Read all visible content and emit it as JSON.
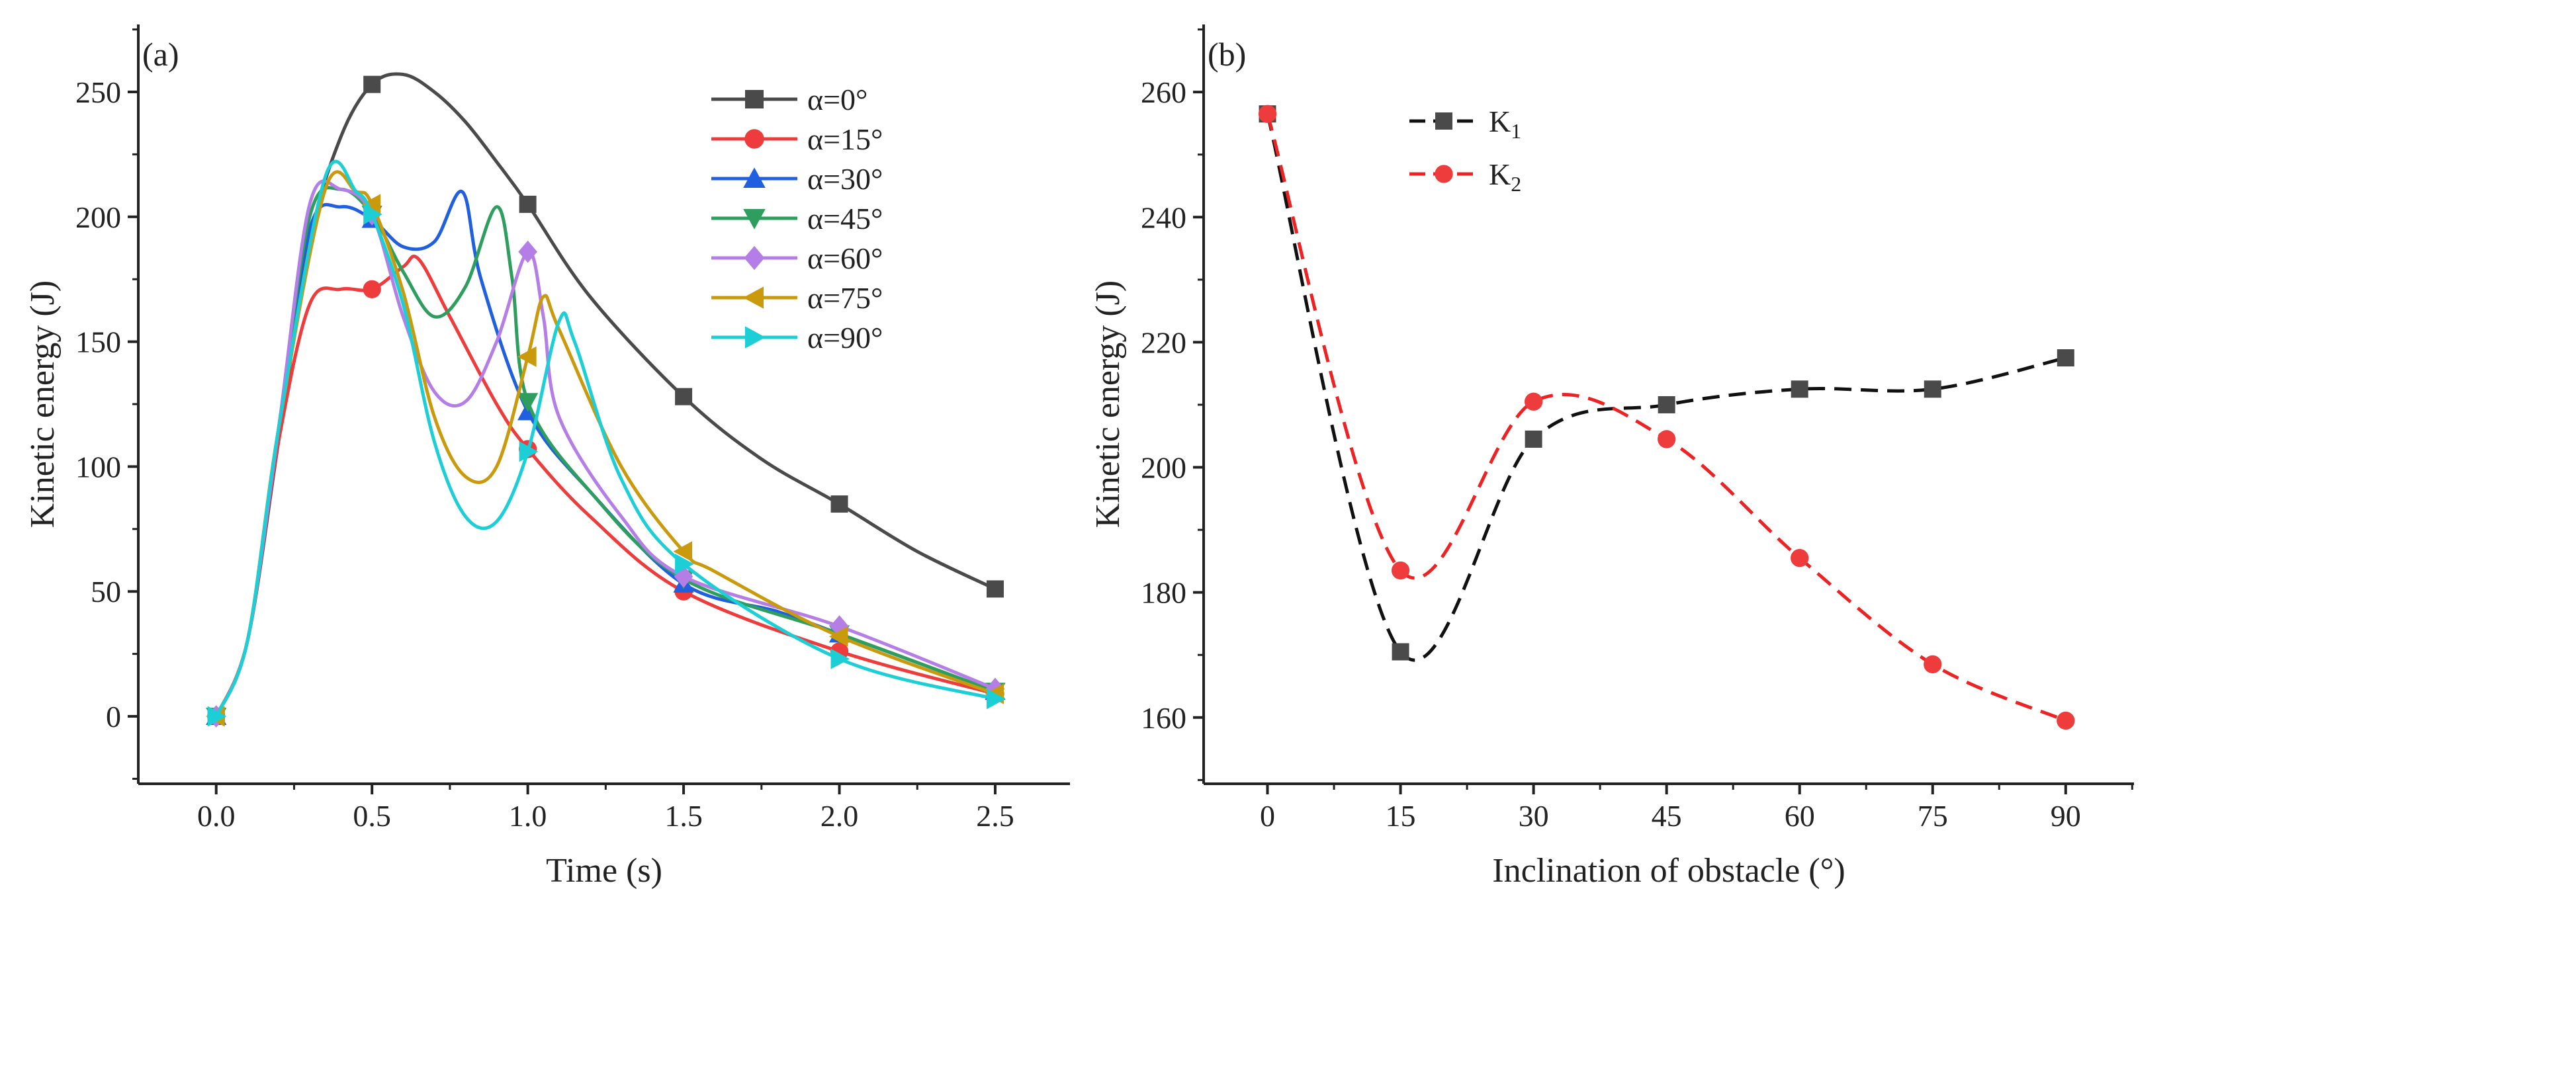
{
  "chart_data": [
    {
      "type": "line",
      "panel_label": "(a)",
      "title": "",
      "xlabel": "Time (s)",
      "ylabel": "Kinetic energy (J)",
      "xlim": [
        -0.25,
        2.74
      ],
      "ylim": [
        -27,
        277
      ],
      "xticks": [
        0.0,
        0.5,
        1.0,
        1.5,
        2.0,
        2.5
      ],
      "xtick_labels": [
        "0.0",
        "0.5",
        "1.0",
        "1.5",
        "2.0",
        "2.5"
      ],
      "yticks": [
        0,
        50,
        100,
        150,
        200,
        250
      ],
      "ytick_labels": [
        "0",
        "50",
        "100",
        "150",
        "200",
        "250"
      ],
      "grid": false,
      "legend_position": "top-right",
      "marker_x": [
        0,
        0.5,
        1.0,
        1.5,
        2.0,
        2.5
      ],
      "series": [
        {
          "name": "α=0°",
          "color": "#4a4a4a",
          "marker": "square",
          "values": [
            0,
            253,
            205,
            128,
            85,
            51
          ],
          "curve": [
            [
              0,
              0
            ],
            [
              0.1,
              30
            ],
            [
              0.2,
              110
            ],
            [
              0.3,
              190
            ],
            [
              0.4,
              232
            ],
            [
              0.5,
              253
            ],
            [
              0.6,
              257
            ],
            [
              0.7,
              250
            ],
            [
              0.8,
              238
            ],
            [
              0.9,
              222
            ],
            [
              1.0,
              205
            ],
            [
              1.2,
              168
            ],
            [
              1.5,
              128
            ],
            [
              1.75,
              103
            ],
            [
              2.0,
              85
            ],
            [
              2.25,
              66
            ],
            [
              2.5,
              51
            ]
          ]
        },
        {
          "name": "α=15°",
          "color": "#ee3b3b",
          "marker": "circle",
          "values": [
            0,
            171,
            107,
            50,
            26,
            9
          ],
          "curve": [
            [
              0,
              0
            ],
            [
              0.1,
              30
            ],
            [
              0.2,
              110
            ],
            [
              0.3,
              165
            ],
            [
              0.4,
              171
            ],
            [
              0.5,
              171
            ],
            [
              0.6,
              180
            ],
            [
              0.65,
              183
            ],
            [
              0.75,
              160
            ],
            [
              0.9,
              125
            ],
            [
              1.0,
              107
            ],
            [
              1.2,
              80
            ],
            [
              1.5,
              50
            ],
            [
              2.0,
              26
            ],
            [
              2.5,
              9
            ]
          ]
        },
        {
          "name": "α=30°",
          "color": "#1f5fe0",
          "marker": "triangle-up",
          "values": [
            0,
            199,
            122,
            53,
            33,
            10
          ],
          "curve": [
            [
              0,
              0
            ],
            [
              0.1,
              30
            ],
            [
              0.2,
              115
            ],
            [
              0.3,
              195
            ],
            [
              0.4,
              204
            ],
            [
              0.5,
              199
            ],
            [
              0.6,
              188
            ],
            [
              0.7,
              190
            ],
            [
              0.79,
              210
            ],
            [
              0.85,
              175
            ],
            [
              1.0,
              122
            ],
            [
              1.2,
              90
            ],
            [
              1.5,
              53
            ],
            [
              1.8,
              42
            ],
            [
              2.0,
              33
            ],
            [
              2.5,
              10
            ]
          ]
        },
        {
          "name": "α=45°",
          "color": "#2e9e5e",
          "marker": "triangle-down",
          "values": [
            0,
            201,
            126,
            55,
            33,
            10
          ],
          "curve": [
            [
              0,
              0
            ],
            [
              0.1,
              30
            ],
            [
              0.2,
              115
            ],
            [
              0.3,
              200
            ],
            [
              0.4,
              211
            ],
            [
              0.5,
              201
            ],
            [
              0.6,
              178
            ],
            [
              0.7,
              160
            ],
            [
              0.8,
              172
            ],
            [
              0.9,
              204
            ],
            [
              0.95,
              175
            ],
            [
              1.0,
              126
            ],
            [
              1.2,
              90
            ],
            [
              1.5,
              55
            ],
            [
              2.0,
              33
            ],
            [
              2.5,
              10
            ]
          ]
        },
        {
          "name": "α=60°",
          "color": "#b57ee6",
          "marker": "diamond",
          "values": [
            0,
            201,
            186,
            56,
            36,
            11
          ],
          "curve": [
            [
              0,
              0
            ],
            [
              0.1,
              30
            ],
            [
              0.2,
              115
            ],
            [
              0.3,
              205
            ],
            [
              0.4,
              211
            ],
            [
              0.5,
              201
            ],
            [
              0.6,
              160
            ],
            [
              0.7,
              130
            ],
            [
              0.8,
              126
            ],
            [
              0.9,
              150
            ],
            [
              1.0,
              186
            ],
            [
              1.05,
              160
            ],
            [
              1.1,
              120
            ],
            [
              1.3,
              80
            ],
            [
              1.5,
              56
            ],
            [
              2.0,
              36
            ],
            [
              2.5,
              11
            ]
          ]
        },
        {
          "name": "α=75°",
          "color": "#c99a0c",
          "marker": "triangle-left",
          "values": [
            0,
            205,
            144,
            66,
            32,
            9
          ],
          "curve": [
            [
              0,
              0
            ],
            [
              0.1,
              30
            ],
            [
              0.2,
              115
            ],
            [
              0.35,
              211
            ],
            [
              0.45,
              210
            ],
            [
              0.5,
              205
            ],
            [
              0.6,
              170
            ],
            [
              0.7,
              120
            ],
            [
              0.8,
              96
            ],
            [
              0.9,
              100
            ],
            [
              1.0,
              144
            ],
            [
              1.05,
              168
            ],
            [
              1.1,
              155
            ],
            [
              1.3,
              100
            ],
            [
              1.5,
              66
            ],
            [
              1.6,
              58
            ],
            [
              2.0,
              32
            ],
            [
              2.5,
              9
            ]
          ]
        },
        {
          "name": "α=90°",
          "color": "#1ccfd6",
          "marker": "triangle-right",
          "values": [
            0,
            201,
            106,
            61,
            23,
            7
          ],
          "curve": [
            [
              0,
              0
            ],
            [
              0.1,
              30
            ],
            [
              0.2,
              115
            ],
            [
              0.35,
              216
            ],
            [
              0.45,
              210
            ],
            [
              0.5,
              201
            ],
            [
              0.6,
              165
            ],
            [
              0.7,
              110
            ],
            [
              0.8,
              80
            ],
            [
              0.9,
              78
            ],
            [
              1.0,
              106
            ],
            [
              1.1,
              158
            ],
            [
              1.15,
              150
            ],
            [
              1.3,
              95
            ],
            [
              1.5,
              61
            ],
            [
              2.0,
              23
            ],
            [
              2.5,
              7
            ]
          ]
        }
      ]
    },
    {
      "type": "line",
      "panel_label": "(b)",
      "title": "",
      "xlabel": "Inclination of obstacle (°)",
      "ylabel": "Kinetic energy (J)",
      "xlim": [
        -7.2,
        97.7
      ],
      "ylim": [
        149.4,
        270.8
      ],
      "xticks": [
        0,
        15,
        30,
        45,
        60,
        75,
        90
      ],
      "xtick_labels": [
        "0",
        "15",
        "30",
        "45",
        "60",
        "75",
        "90"
      ],
      "yticks": [
        160,
        180,
        200,
        220,
        240,
        260
      ],
      "ytick_labels": [
        "160",
        "180",
        "200",
        "220",
        "240",
        "260"
      ],
      "grid": false,
      "legend_position": "top-right",
      "x": [
        0,
        15,
        30,
        45,
        60,
        75,
        90
      ],
      "series": [
        {
          "name": "K1",
          "label_main": "K",
          "label_sub": "1",
          "color": "#111111",
          "marker_color": "#4a4a4a",
          "marker": "square",
          "line": "dashed",
          "values": [
            256.5,
            170.5,
            204.5,
            210,
            212.5,
            212.5,
            217.5
          ]
        },
        {
          "name": "K2",
          "label_main": "K",
          "label_sub": "2",
          "color": "#ee2222",
          "marker_color": "#ee3b3b",
          "marker": "circle",
          "line": "dashed",
          "values": [
            256.5,
            183.5,
            210.5,
            204.5,
            185.5,
            168.5,
            159.5
          ]
        }
      ]
    }
  ]
}
